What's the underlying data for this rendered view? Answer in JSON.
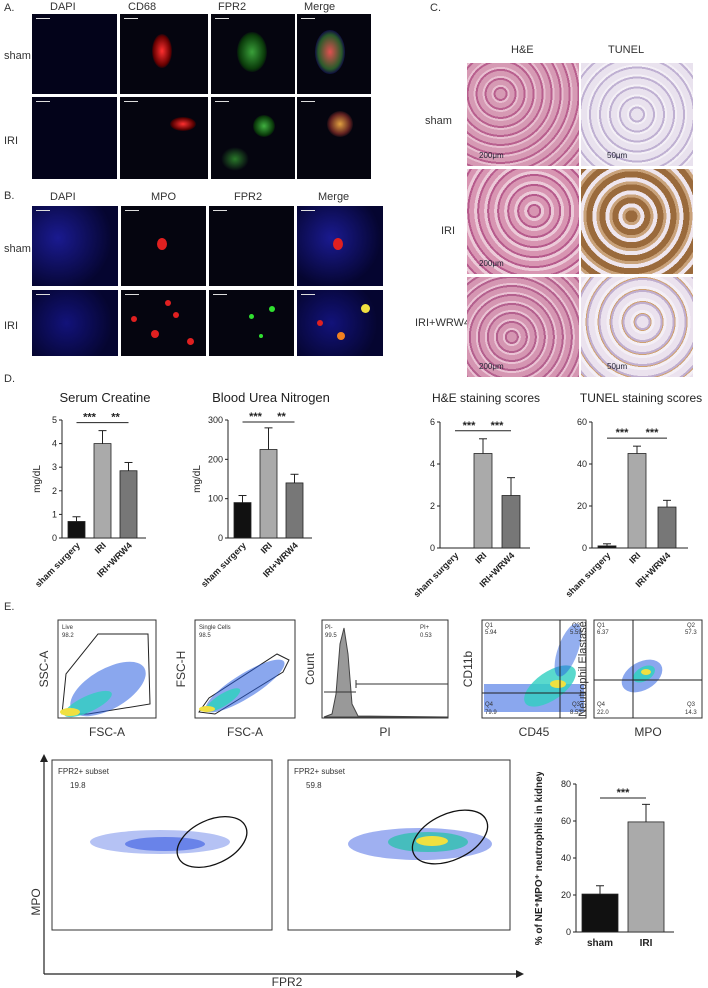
{
  "panel_a": {
    "letter": "A.",
    "columns": [
      "DAPI",
      "CD68",
      "FPR2",
      "Merge"
    ],
    "rows": [
      "sham",
      "IRI"
    ]
  },
  "panel_b": {
    "letter": "B.",
    "columns": [
      "DAPI",
      "MPO",
      "FPR2",
      "Merge"
    ],
    "rows": [
      "sham",
      "IRI"
    ]
  },
  "panel_c": {
    "letter": "C.",
    "columns": [
      "H&E",
      "TUNEL"
    ],
    "rows": [
      "sham",
      "IRI",
      "IRI+WRW4"
    ],
    "scale_he": "200μm",
    "scale_tunel": "50μm"
  },
  "panel_d": {
    "letter": "D."
  },
  "panel_e": {
    "letter": "E."
  },
  "flow": {
    "p1": {
      "y": "SSC-A",
      "x": "FSC-A",
      "gate": "Live",
      "gate_val": "98.2"
    },
    "p2": {
      "y": "FSC-H",
      "x": "FSC-A",
      "gate": "Single Cells",
      "gate_val": "98.5"
    },
    "p3": {
      "y": "Count",
      "x": "PI",
      "left_lbl": "PI-",
      "left_val": "99.5",
      "right_lbl": "PI+",
      "right_val": "0.53"
    },
    "p4": {
      "y": "CD11b",
      "x": "CD45",
      "q1": "Q1",
      "q1v": "5.94",
      "q2": "Q2",
      "q2v": "5.59",
      "q3": "Q3",
      "q3v": "8.53",
      "q4": "Q4",
      "q4v": "79.9"
    },
    "p5": {
      "y": "Neutrophil Elastase",
      "x": "MPO",
      "q1": "Q1",
      "q1v": "6.37",
      "q2": "Q2",
      "q2v": "57.3",
      "q3": "Q3",
      "q3v": "14.3",
      "q4": "Q4",
      "q4v": "22.0"
    },
    "big_left": {
      "subset": "FPR2+ subset",
      "val": "19.8"
    },
    "big_right": {
      "subset": "FPR2+ subset",
      "val": "59.8"
    },
    "big_y": "MPO",
    "big_x": "FPR2"
  },
  "chart_data": [
    {
      "type": "bar",
      "title": "Serum Creatine",
      "ylabel": "mg/dL",
      "categories": [
        "sham surgery",
        "IRI",
        "IRI+WRW4"
      ],
      "values": [
        0.7,
        4.0,
        2.85
      ],
      "errors": [
        0.2,
        0.55,
        0.35
      ],
      "ylim": [
        0,
        5
      ],
      "yticks": [
        "0",
        "1",
        "2",
        "3",
        "4",
        "5"
      ],
      "colors": [
        "#111111",
        "#aaaaaa",
        "#777777"
      ],
      "sig": [
        {
          "from": 0,
          "to": 1,
          "label": "***"
        },
        {
          "from": 1,
          "to": 2,
          "label": "**"
        }
      ]
    },
    {
      "type": "bar",
      "title": "Blood Urea Nitrogen",
      "ylabel": "mg/dL",
      "categories": [
        "sham surgery",
        "IRI",
        "IRI+WRW4"
      ],
      "values": [
        90,
        225,
        140
      ],
      "errors": [
        18,
        55,
        22
      ],
      "ylim": [
        0,
        300
      ],
      "yticks": [
        "0",
        "100",
        "200",
        "300"
      ],
      "colors": [
        "#111111",
        "#aaaaaa",
        "#777777"
      ],
      "sig": [
        {
          "from": 0,
          "to": 1,
          "label": "***"
        },
        {
          "from": 1,
          "to": 2,
          "label": "**"
        }
      ]
    },
    {
      "type": "bar",
      "title": "H&E staining scores",
      "ylabel": "",
      "categories": [
        "sham surgery",
        "IRI",
        "IRI+WRW4"
      ],
      "values": [
        0,
        4.5,
        2.5
      ],
      "errors": [
        0,
        0.7,
        0.85
      ],
      "ylim": [
        0,
        6
      ],
      "yticks": [
        "0",
        "2",
        "4",
        "6"
      ],
      "colors": [
        "#111111",
        "#aaaaaa",
        "#777777"
      ],
      "sig": [
        {
          "from": 0,
          "to": 1,
          "label": "***"
        },
        {
          "from": 1,
          "to": 2,
          "label": "***"
        }
      ]
    },
    {
      "type": "bar",
      "title": "TUNEL staining scores",
      "ylabel": "",
      "categories": [
        "sham surgery",
        "IRI",
        "IRI+WRW4"
      ],
      "values": [
        1,
        45,
        19.5
      ],
      "errors": [
        1,
        3.5,
        3.2
      ],
      "ylim": [
        0,
        60
      ],
      "yticks": [
        "0",
        "20",
        "40",
        "60"
      ],
      "colors": [
        "#111111",
        "#aaaaaa",
        "#777777"
      ],
      "sig": [
        {
          "from": 0,
          "to": 1,
          "label": "***"
        },
        {
          "from": 1,
          "to": 2,
          "label": "***"
        }
      ]
    },
    {
      "type": "bar",
      "title": "",
      "ylabel": "% of NE⁺MPO⁺ neutrophils in kidney",
      "categories": [
        "sham",
        "IRI"
      ],
      "values": [
        20.5,
        59.5
      ],
      "errors": [
        4.5,
        9.5
      ],
      "ylim": [
        0,
        80
      ],
      "yticks": [
        "0",
        "20",
        "40",
        "60",
        "80"
      ],
      "colors": [
        "#111111",
        "#aaaaaa"
      ],
      "sig": [
        {
          "from": 0,
          "to": 1,
          "label": "***"
        }
      ]
    }
  ]
}
